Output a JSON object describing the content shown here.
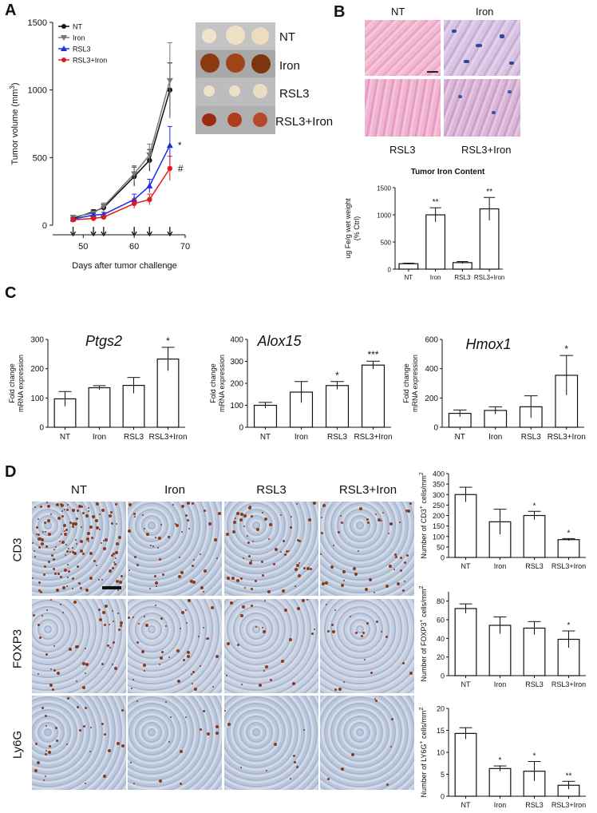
{
  "panels": {
    "a": "A",
    "b": "B",
    "c": "C",
    "d": "D"
  },
  "chart_data": [
    {
      "id": "tumor-volume",
      "type": "line",
      "ylabel": "Tumor volume (mm",
      "ylabel_sup": "3",
      "ylabel_end": ")",
      "xlabel": "Days after tumor challenge",
      "xlim": [
        44,
        70
      ],
      "ylim": [
        0,
        1500
      ],
      "xticks": [
        50,
        60,
        70
      ],
      "yticks": [
        0,
        500,
        1000,
        1500
      ],
      "arrows_x": [
        48,
        52,
        54,
        60,
        63,
        67
      ],
      "series": [
        {
          "name": "NT",
          "color": "#111111",
          "marker": "circle",
          "x": [
            48,
            52,
            54,
            60,
            63,
            67
          ],
          "y": [
            50,
            100,
            130,
            360,
            480,
            1000
          ],
          "err": [
            10,
            15,
            25,
            70,
            80,
            200
          ]
        },
        {
          "name": "Iron",
          "color": "#777777",
          "marker": "triangle-down",
          "x": [
            48,
            52,
            54,
            60,
            63,
            67
          ],
          "y": [
            60,
            90,
            140,
            380,
            520,
            1070
          ],
          "err": [
            10,
            15,
            25,
            60,
            80,
            280
          ]
        },
        {
          "name": "RSL3",
          "color": "#1a2fe0",
          "marker": "triangle-up",
          "x": [
            48,
            52,
            54,
            60,
            63,
            67
          ],
          "y": [
            45,
            75,
            80,
            190,
            290,
            590
          ],
          "err": [
            10,
            12,
            15,
            40,
            50,
            140
          ]
        },
        {
          "name": "RSL3+Iron",
          "color": "#e01a1a",
          "marker": "circle",
          "x": [
            48,
            52,
            54,
            60,
            63,
            67
          ],
          "y": [
            40,
            50,
            60,
            160,
            190,
            420
          ],
          "err": [
            8,
            10,
            12,
            35,
            40,
            90
          ]
        }
      ],
      "annotations": [
        {
          "text": "*",
          "series": "RSL3"
        },
        {
          "text": "#",
          "series": "RSL3+Iron"
        }
      ]
    },
    {
      "id": "tumor-iron",
      "type": "bar",
      "title": "Tumor Iron Content",
      "ylabel": "ug Fe/g wet weight",
      "ylabel2": "(% Ctrl)",
      "categories": [
        "NT",
        "Iron",
        "RSL3",
        "RSL3+Iron"
      ],
      "values": [
        100,
        1000,
        120,
        1110
      ],
      "errors": [
        10,
        130,
        20,
        210
      ],
      "sig": [
        "",
        "**",
        "",
        "**"
      ],
      "ylim": [
        0,
        1500
      ],
      "yticks": [
        0,
        500,
        1000,
        1500
      ]
    },
    {
      "id": "ptgs2",
      "type": "bar",
      "title": "Ptgs2",
      "ylabel": "Fold change",
      "ylabel2": "mRNA expression",
      "categories": [
        "NT",
        "Iron",
        "RSL3",
        "RSL3+Iron"
      ],
      "values": [
        97,
        135,
        143,
        233
      ],
      "errors": [
        25,
        7,
        27,
        40
      ],
      "sig": [
        "",
        "",
        "",
        "*"
      ],
      "ylim": [
        0,
        300
      ],
      "yticks": [
        0,
        100,
        200,
        300
      ]
    },
    {
      "id": "alox15",
      "type": "bar",
      "title": "Alox15",
      "ylabel": "Fold change",
      "ylabel2": "mRNA expression",
      "categories": [
        "NT",
        "Iron",
        "RSL3",
        "RSL3+Iron"
      ],
      "values": [
        100,
        160,
        190,
        283
      ],
      "errors": [
        13,
        48,
        18,
        18
      ],
      "sig": [
        "",
        "",
        "*",
        "***"
      ],
      "ylim": [
        0,
        400
      ],
      "yticks": [
        0,
        100,
        200,
        300,
        400
      ]
    },
    {
      "id": "hmox1",
      "type": "bar",
      "title": "Hmox1",
      "ylabel": "Fold change",
      "ylabel2": "mRNA expression",
      "categories": [
        "NT",
        "Iron",
        "RSL3",
        "RSL3+Iron"
      ],
      "values": [
        95,
        115,
        140,
        355
      ],
      "errors": [
        23,
        25,
        75,
        135
      ],
      "sig": [
        "",
        "",
        "",
        "*"
      ],
      "ylim": [
        0,
        600
      ],
      "yticks": [
        0,
        200,
        400,
        600
      ]
    },
    {
      "id": "cd3-count",
      "type": "bar",
      "ylabel": "Number of CD3",
      "ylabel_sup": "+",
      "ylabel_end": " cells/mm",
      "ylabel_sup2": "2",
      "categories": [
        "NT",
        "Iron",
        "RSL3",
        "RSL3+Iron"
      ],
      "values": [
        300,
        170,
        200,
        85
      ],
      "errors": [
        35,
        60,
        20,
        5
      ],
      "sig": [
        "",
        "",
        "*",
        "*"
      ],
      "ylim": [
        0,
        400
      ],
      "yticks": [
        0,
        50,
        100,
        150,
        200,
        250,
        300,
        350,
        400
      ]
    },
    {
      "id": "foxp3-count",
      "type": "bar",
      "ylabel": "Number of FOXP3",
      "ylabel_sup": "+",
      "ylabel_end": " cells/mm",
      "ylabel_sup2": "2",
      "categories": [
        "NT",
        "Iron",
        "RSL3",
        "RSL3+Iron"
      ],
      "values": [
        72,
        54,
        51,
        39
      ],
      "errors": [
        5,
        9,
        7,
        9
      ],
      "sig": [
        "",
        "",
        "",
        "*"
      ],
      "ylim": [
        0,
        90
      ],
      "yticks": [
        0,
        20,
        40,
        60,
        80
      ]
    },
    {
      "id": "ly6g-count",
      "type": "bar",
      "ylabel": "Number of LY6G",
      "ylabel_sup": "+",
      "ylabel_end": " cells/mm",
      "ylabel_sup2": "2",
      "categories": [
        "NT",
        "Iron",
        "RSL3",
        "RSL3+Iron"
      ],
      "values": [
        14.3,
        6.3,
        5.7,
        2.5
      ],
      "errors": [
        1.3,
        0.6,
        2.2,
        0.9
      ],
      "sig": [
        "",
        "*",
        "*",
        "**"
      ],
      "ylim": [
        0,
        20
      ],
      "yticks": [
        0,
        5,
        10,
        15,
        20
      ]
    }
  ],
  "tumor_photo": {
    "rows": [
      "NT",
      "Iron",
      "RSL3",
      "RSL3+Iron"
    ]
  },
  "histology_b": {
    "top": [
      "NT",
      "Iron"
    ],
    "bottom": [
      "RSL3",
      "RSL3+Iron"
    ]
  },
  "histology_d": {
    "cols": [
      "NT",
      "Iron",
      "RSL3",
      "RSL3+Iron"
    ],
    "rows": [
      "CD3",
      "FOXP3",
      "Ly6G"
    ]
  }
}
